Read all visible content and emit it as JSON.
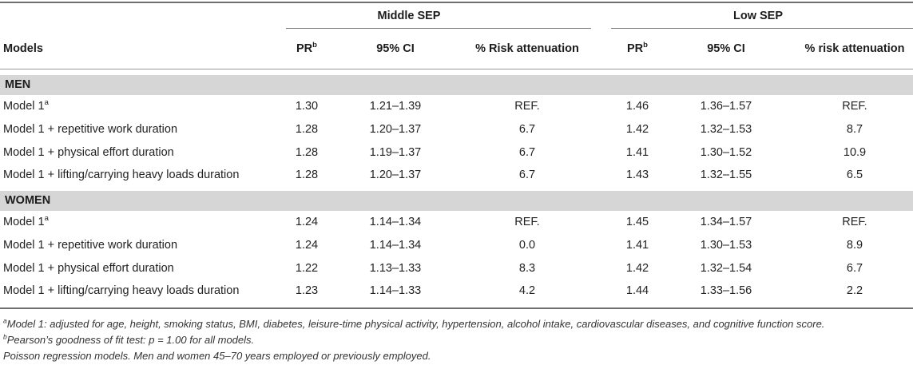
{
  "header": {
    "group_middle": "Middle SEP",
    "group_low": "Low SEP",
    "col_models": "Models",
    "col_pr": "PR",
    "col_pr_sup": "b",
    "col_ci": "95% CI",
    "col_risk_middle": "% Risk attenuation",
    "col_risk_low": "% risk attenuation"
  },
  "sections": [
    {
      "label": "MEN",
      "rows": [
        {
          "model": "Model 1",
          "sup": "a",
          "mid_pr": "1.30",
          "mid_ci": "1.21–1.39",
          "mid_att": "REF.",
          "low_pr": "1.46",
          "low_ci": "1.36–1.57",
          "low_att": "REF."
        },
        {
          "model": "Model 1 + repetitive work duration",
          "sup": "",
          "mid_pr": "1.28",
          "mid_ci": "1.20–1.37",
          "mid_att": "6.7",
          "low_pr": "1.42",
          "low_ci": "1.32–1.53",
          "low_att": "8.7"
        },
        {
          "model": "Model 1 + physical effort duration",
          "sup": "",
          "mid_pr": "1.28",
          "mid_ci": "1.19–1.37",
          "mid_att": "6.7",
          "low_pr": "1.41",
          "low_ci": "1.30–1.52",
          "low_att": "10.9"
        },
        {
          "model": "Model 1 + lifting/carrying heavy loads duration",
          "sup": "",
          "mid_pr": "1.28",
          "mid_ci": "1.20–1.37",
          "mid_att": "6.7",
          "low_pr": "1.43",
          "low_ci": "1.32–1.55",
          "low_att": "6.5"
        }
      ]
    },
    {
      "label": "WOMEN",
      "rows": [
        {
          "model": "Model 1",
          "sup": "a",
          "mid_pr": "1.24",
          "mid_ci": "1.14–1.34",
          "mid_att": "REF.",
          "low_pr": "1.45",
          "low_ci": "1.34–1.57",
          "low_att": "REF."
        },
        {
          "model": "Model 1 + repetitive work duration",
          "sup": "",
          "mid_pr": "1.24",
          "mid_ci": "1.14–1.34",
          "mid_att": "0.0",
          "low_pr": "1.41",
          "low_ci": "1.30–1.53",
          "low_att": "8.9"
        },
        {
          "model": "Model 1 + physical effort duration",
          "sup": "",
          "mid_pr": "1.22",
          "mid_ci": "1.13–1.33",
          "mid_att": "8.3",
          "low_pr": "1.42",
          "low_ci": "1.32–1.54",
          "low_att": "6.7"
        },
        {
          "model": "Model 1 + lifting/carrying heavy loads duration",
          "sup": "",
          "mid_pr": "1.23",
          "mid_ci": "1.14–1.33",
          "mid_att": "4.2",
          "low_pr": "1.44",
          "low_ci": "1.33–1.56",
          "low_att": "2.2"
        }
      ]
    }
  ],
  "footnotes": [
    {
      "sup": "a",
      "text": "Model 1: adjusted for age, height, smoking status, BMI, diabetes, leisure-time physical activity, hypertension, alcohol intake, cardiovascular diseases, and cognitive function score."
    },
    {
      "sup": "b",
      "text": "Pearson’s goodness of fit test: p = 1.00 for all models."
    },
    {
      "sup": "",
      "text": "Poisson regression models. Men and women 45–70 years employed or previously employed."
    }
  ]
}
